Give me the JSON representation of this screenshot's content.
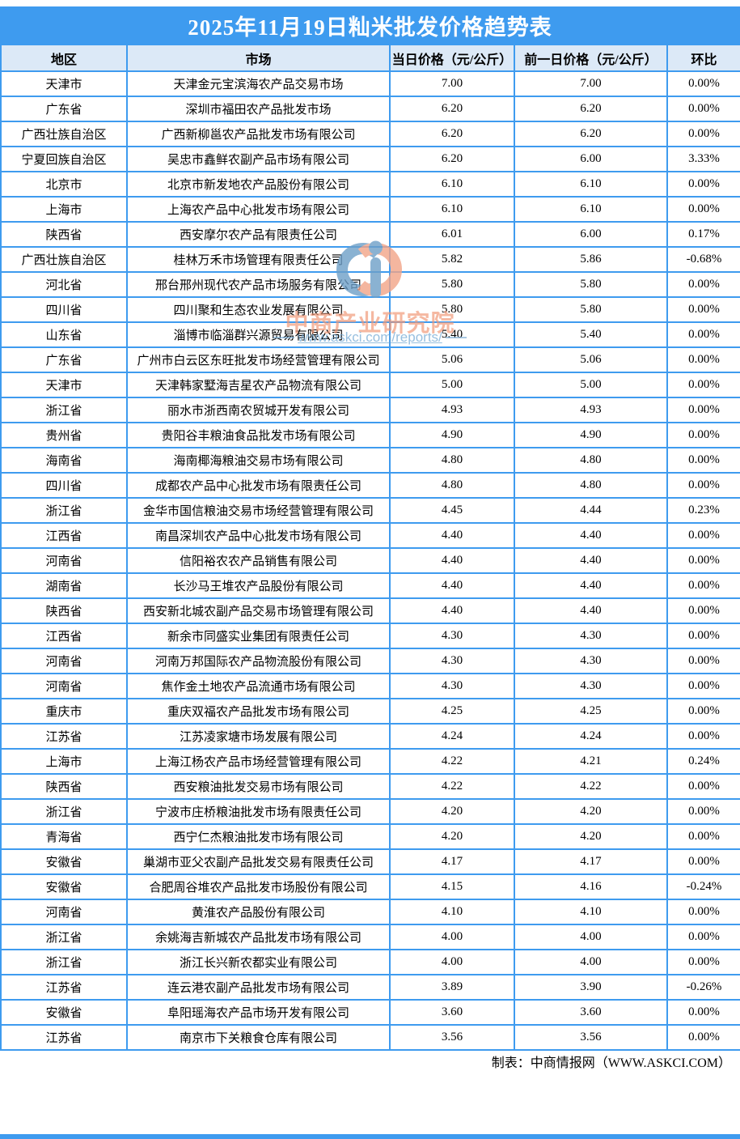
{
  "title": "2025年11月19日籼米批发价格趋势表",
  "chart_data": {
    "type": "table",
    "title": "2025年11月19日籼米批发价格趋势表",
    "columns": [
      "地区",
      "市场",
      "当日价格（元/公斤）",
      "前一日价格（元/公斤）",
      "环比"
    ],
    "rows": [
      [
        "天津市",
        "天津金元宝滨海农产品交易市场",
        "7.00",
        "7.00",
        "0.00%"
      ],
      [
        "广东省",
        "深圳市福田农产品批发市场",
        "6.20",
        "6.20",
        "0.00%"
      ],
      [
        "广西壮族自治区",
        "广西新柳邕农产品批发市场有限公司",
        "6.20",
        "6.20",
        "0.00%"
      ],
      [
        "宁夏回族自治区",
        "吴忠市鑫鲜农副产品市场有限公司",
        "6.20",
        "6.00",
        "3.33%"
      ],
      [
        "北京市",
        "北京市新发地农产品股份有限公司",
        "6.10",
        "6.10",
        "0.00%"
      ],
      [
        "上海市",
        "上海农产品中心批发市场有限公司",
        "6.10",
        "6.10",
        "0.00%"
      ],
      [
        "陕西省",
        "西安摩尔农产品有限责任公司",
        "6.01",
        "6.00",
        "0.17%"
      ],
      [
        "广西壮族自治区",
        "桂林万禾市场管理有限责任公司",
        "5.82",
        "5.86",
        "-0.68%"
      ],
      [
        "河北省",
        "邢台邢州现代农产品市场服务有限公司",
        "5.80",
        "5.80",
        "0.00%"
      ],
      [
        "四川省",
        "四川聚和生态农业发展有限公司",
        "5.80",
        "5.80",
        "0.00%"
      ],
      [
        "山东省",
        "淄博市临淄群兴源贸易有限公司",
        "5.40",
        "5.40",
        "0.00%"
      ],
      [
        "广东省",
        "广州市白云区东旺批发市场经营管理有限公司",
        "5.06",
        "5.06",
        "0.00%"
      ],
      [
        "天津市",
        "天津韩家墅海吉星农产品物流有限公司",
        "5.00",
        "5.00",
        "0.00%"
      ],
      [
        "浙江省",
        "丽水市浙西南农贸城开发有限公司",
        "4.93",
        "4.93",
        "0.00%"
      ],
      [
        "贵州省",
        "贵阳谷丰粮油食品批发市场有限公司",
        "4.90",
        "4.90",
        "0.00%"
      ],
      [
        "海南省",
        "海南椰海粮油交易市场有限公司",
        "4.80",
        "4.80",
        "0.00%"
      ],
      [
        "四川省",
        "成都农产品中心批发市场有限责任公司",
        "4.80",
        "4.80",
        "0.00%"
      ],
      [
        "浙江省",
        "金华市国信粮油交易市场经营管理有限公司",
        "4.45",
        "4.44",
        "0.23%"
      ],
      [
        "江西省",
        "南昌深圳农产品中心批发市场有限公司",
        "4.40",
        "4.40",
        "0.00%"
      ],
      [
        "河南省",
        "信阳裕农农产品销售有限公司",
        "4.40",
        "4.40",
        "0.00%"
      ],
      [
        "湖南省",
        "长沙马王堆农产品股份有限公司",
        "4.40",
        "4.40",
        "0.00%"
      ],
      [
        "陕西省",
        "西安新北城农副产品交易市场管理有限公司",
        "4.40",
        "4.40",
        "0.00%"
      ],
      [
        "江西省",
        "新余市同盛实业集团有限责任公司",
        "4.30",
        "4.30",
        "0.00%"
      ],
      [
        "河南省",
        "河南万邦国际农产品物流股份有限公司",
        "4.30",
        "4.30",
        "0.00%"
      ],
      [
        "河南省",
        "焦作金土地农产品流通市场有限公司",
        "4.30",
        "4.30",
        "0.00%"
      ],
      [
        "重庆市",
        "重庆双福农产品批发市场有限公司",
        "4.25",
        "4.25",
        "0.00%"
      ],
      [
        "江苏省",
        "江苏凌家塘市场发展有限公司",
        "4.24",
        "4.24",
        "0.00%"
      ],
      [
        "上海市",
        "上海江杨农产品市场经营管理有限公司",
        "4.22",
        "4.21",
        "0.24%"
      ],
      [
        "陕西省",
        "西安粮油批发交易市场有限公司",
        "4.22",
        "4.22",
        "0.00%"
      ],
      [
        "浙江省",
        "宁波市庄桥粮油批发市场有限责任公司",
        "4.20",
        "4.20",
        "0.00%"
      ],
      [
        "青海省",
        "西宁仁杰粮油批发市场有限公司",
        "4.20",
        "4.20",
        "0.00%"
      ],
      [
        "安徽省",
        "巢湖市亚父农副产品批发交易有限责任公司",
        "4.17",
        "4.17",
        "0.00%"
      ],
      [
        "安徽省",
        "合肥周谷堆农产品批发市场股份有限公司",
        "4.15",
        "4.16",
        "-0.24%"
      ],
      [
        "河南省",
        "黄淮农产品股份有限公司",
        "4.10",
        "4.10",
        "0.00%"
      ],
      [
        "浙江省",
        "余姚海吉新城农产品批发市场有限公司",
        "4.00",
        "4.00",
        "0.00%"
      ],
      [
        "浙江省",
        "浙江长兴新农都实业有限公司",
        "4.00",
        "4.00",
        "0.00%"
      ],
      [
        "江苏省",
        "连云港农副产品批发市场有限公司",
        "3.89",
        "3.90",
        "-0.26%"
      ],
      [
        "安徽省",
        "阜阳瑶海农产品市场开发有限公司",
        "3.60",
        "3.60",
        "0.00%"
      ],
      [
        "江苏省",
        "南京市下关粮食仓库有限公司",
        "3.56",
        "3.56",
        "0.00%"
      ]
    ]
  },
  "footer": {
    "credit": "制表：中商情报网（WWW.ASKCI.COM）"
  },
  "watermark": {
    "brand": "中商产业研究院",
    "url": "www.askci.com/reports/"
  },
  "colors": {
    "accent_blue": "#3E9BEF",
    "header_bg": "#DCE9F7",
    "watermark_orange": "#F2A488",
    "watermark_blue": "#6E9FC8"
  }
}
